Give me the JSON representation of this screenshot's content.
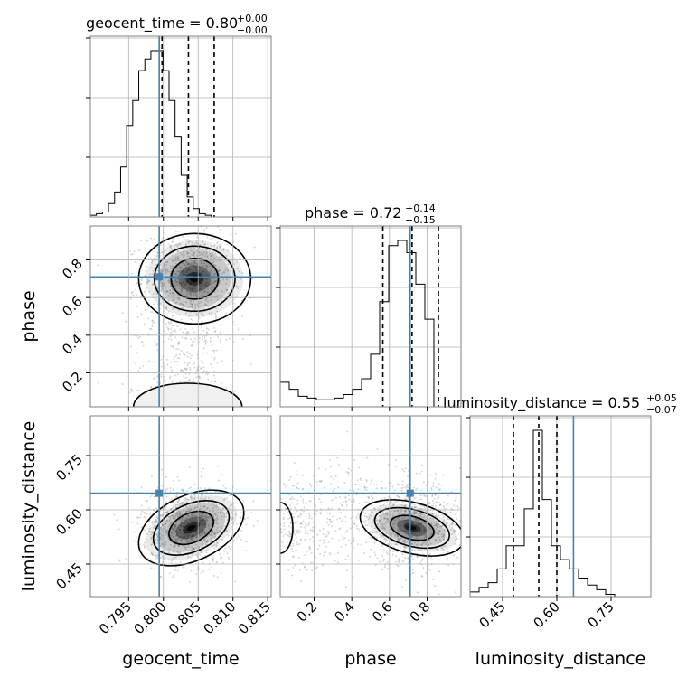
{
  "chart_data": {
    "type": "corner",
    "parameters": [
      "geocent_time",
      "phase",
      "luminosity_distance"
    ],
    "truths": {
      "geocent_time": 0.7994,
      "phase": 0.71,
      "luminosity_distance": 0.646
    },
    "summaries": [
      {
        "param": "geocent_time",
        "title": "geocent_time = 0.80",
        "upper": "+0.00",
        "lower": "−0.00",
        "q16": 0.7998,
        "median": 0.8036,
        "q84": 0.8073
      },
      {
        "param": "phase",
        "title": "phase = 0.72",
        "upper": "+0.14",
        "lower": "−0.15",
        "q16": 0.565,
        "median": 0.72,
        "q84": 0.86
      },
      {
        "param": "luminosity_distance",
        "title": "luminosity_distance = 0.55",
        "upper": "+0.05",
        "lower": "−0.07",
        "q16": 0.48,
        "median": 0.55,
        "q84": 0.6
      }
    ],
    "axes": {
      "geocent_time": {
        "range": [
          0.7895,
          0.8155
        ],
        "ticks": [
          0.795,
          0.8,
          0.805,
          0.81,
          0.815
        ],
        "tick_labels": [
          "0.795",
          "0.800",
          "0.805",
          "0.810",
          "0.815"
        ]
      },
      "phase": {
        "range": [
          0.02,
          0.98
        ],
        "ticks": [
          0.2,
          0.4,
          0.6,
          0.8
        ],
        "tick_labels": [
          "0.2",
          "0.4",
          "0.6",
          "0.8"
        ]
      },
      "luminosity_distance": {
        "range": [
          0.36,
          0.86
        ],
        "ticks": [
          0.45,
          0.6,
          0.75
        ],
        "tick_labels": [
          "0.45",
          "0.60",
          "0.75"
        ]
      }
    },
    "histograms": {
      "geocent_time": {
        "edges_start": 0.7895,
        "bin_width": 0.00087,
        "counts": [
          1,
          2,
          3,
          8,
          15,
          30,
          55,
          70,
          88,
          95,
          100,
          100,
          88,
          70,
          48,
          25,
          12,
          5,
          2,
          1
        ]
      },
      "phase": {
        "edges_start": 0.02,
        "bin_width": 0.048,
        "counts": [
          14,
          10,
          6,
          5,
          4,
          4,
          5,
          7,
          10,
          16,
          30,
          60,
          92,
          95,
          88,
          70,
          50
        ]
      },
      "luminosity_distance": {
        "edges_start": 0.36,
        "bin_width": 0.025,
        "counts": [
          2,
          4,
          6,
          12,
          22,
          22,
          38,
          72,
          42,
          22,
          16,
          12,
          8,
          5,
          3,
          1
        ]
      }
    },
    "grid": true
  }
}
